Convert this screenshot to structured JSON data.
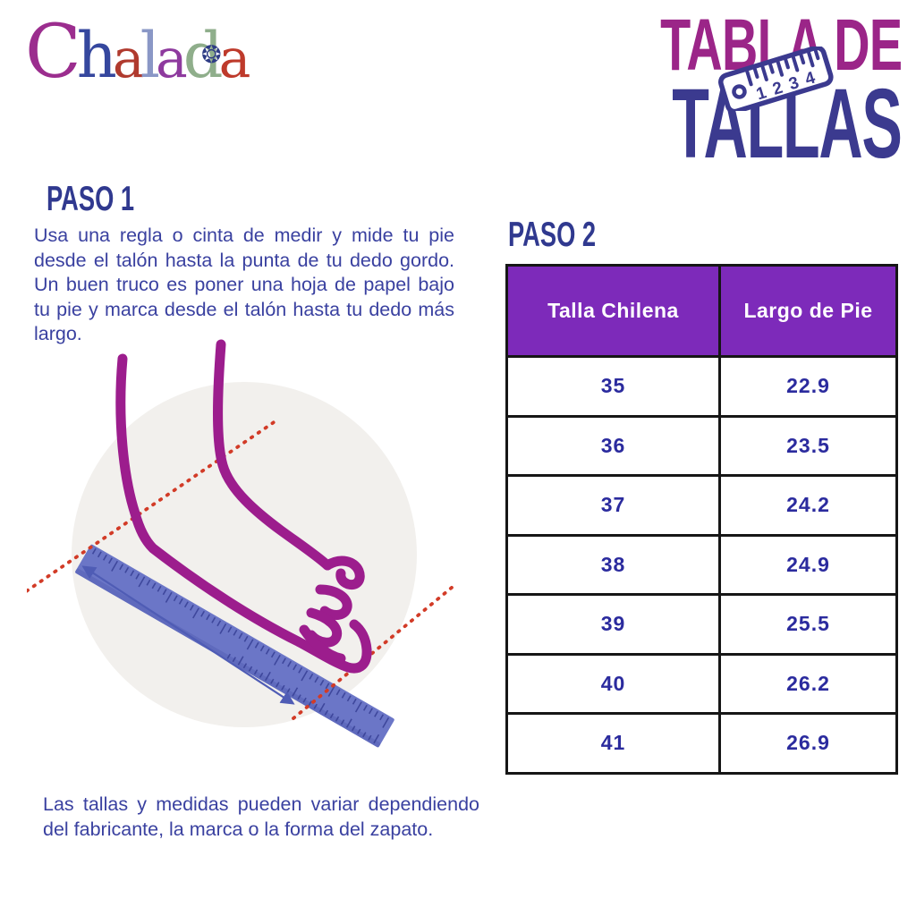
{
  "logo": {
    "brand": "Chalada",
    "letters": [
      {
        "ch": "C",
        "color": "#9B2D8E"
      },
      {
        "ch": "h",
        "color": "#35479E"
      },
      {
        "ch": "a",
        "color": "#B03A2E"
      },
      {
        "ch": "l",
        "color": "#8A97C6"
      },
      {
        "ch": "a",
        "color": "#8E3A9E"
      },
      {
        "ch": "d",
        "color": "#8FAE8B"
      },
      {
        "ch": "a",
        "color": "#BE3A2B"
      }
    ],
    "mandala_glyph": "❂",
    "mandala_color": "#2E3C85"
  },
  "title": {
    "line1": "TABLA DE",
    "line2": "TALLAS",
    "ruler_numbers": [
      "1",
      "2",
      "3",
      "4"
    ]
  },
  "paso1": {
    "heading": "PASO 1",
    "body": "Usa una regla o cinta de medir y mide tu pie desde el talón hasta la punta de tu dedo gordo. Un buen truco es poner una hoja de papel bajo tu pie y marca desde el talón hasta tu dedo más largo."
  },
  "paso2": {
    "heading": "PASO 2"
  },
  "table": {
    "headers": [
      "Talla Chilena",
      "Largo de Pie"
    ],
    "rows": [
      {
        "talla": "35",
        "largo": "22.9"
      },
      {
        "talla": "36",
        "largo": "23.5"
      },
      {
        "talla": "37",
        "largo": "24.2"
      },
      {
        "talla": "38",
        "largo": "24.9"
      },
      {
        "talla": "39",
        "largo": "25.5"
      },
      {
        "talla": "40",
        "largo": "26.2"
      },
      {
        "talla": "41",
        "largo": "26.9"
      }
    ]
  },
  "footnote": "Las tallas y medidas pueden variar dependiendo del fabricante, la marca o la forma del zapato.",
  "colors": {
    "title_magenta": "#9B2588",
    "title_indigo": "#3B3A8F",
    "heading_blue": "#30398F",
    "body_blue": "#3A41A0",
    "table_header_bg": "#7D2ABA",
    "table_text": "#2B2B9E",
    "foot_purple": "#9C1D8D",
    "ruler_blue": "#6B76C7",
    "dotted_red": "#D23B27",
    "circle_gray": "#F2F0ED",
    "arrow_blue": "#4F5CB5"
  }
}
